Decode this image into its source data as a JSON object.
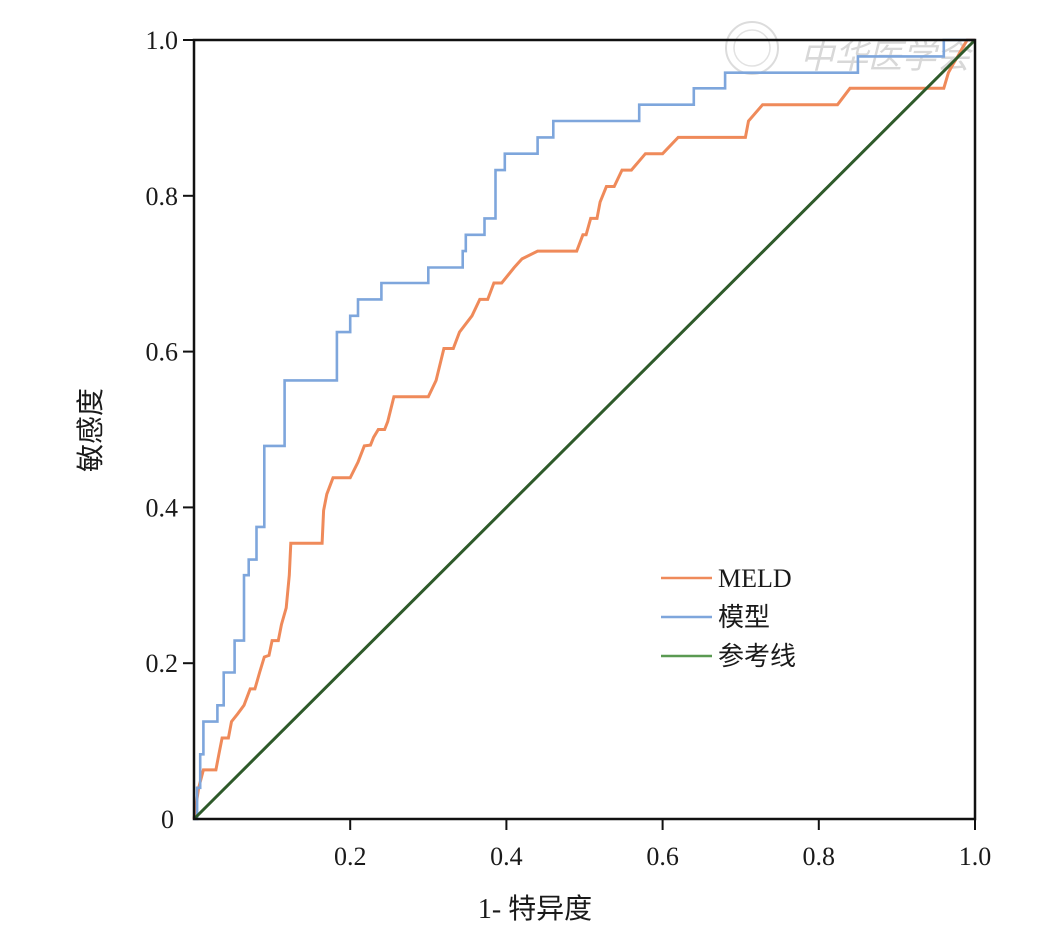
{
  "chart_data": {
    "type": "line",
    "title": "",
    "xlabel": "1- 特异度",
    "ylabel": "敏感度",
    "xlim": [
      0,
      1
    ],
    "ylim": [
      0,
      1
    ],
    "grid": false,
    "x_ticks": [
      0.2,
      0.4,
      0.6,
      0.8,
      1.0
    ],
    "x_tick_labels": [
      "0.2",
      "0.4",
      "0.6",
      "0.8",
      "1.0"
    ],
    "y_ticks": [
      0,
      0.2,
      0.4,
      0.6,
      0.8,
      1.0
    ],
    "y_tick_labels": [
      "0",
      "0.2",
      "0.4",
      "0.6",
      "0.8",
      "1.0"
    ],
    "legend_position": "center-right",
    "watermark": "中华医学会",
    "series": [
      {
        "name": "MELD",
        "color": "#ef8a5a",
        "x": [
          0,
          0.003,
          0.006,
          0.012,
          0.012,
          0.028,
          0.032,
          0.036,
          0.044,
          0.048,
          0.056,
          0.064,
          0.072,
          0.078,
          0.084,
          0.09,
          0.096,
          0.1,
          0.108,
          0.112,
          0.118,
          0.122,
          0.124,
          0.164,
          0.166,
          0.17,
          0.178,
          0.2,
          0.21,
          0.218,
          0.226,
          0.23,
          0.236,
          0.244,
          0.248,
          0.256,
          0.3,
          0.31,
          0.32,
          0.332,
          0.34,
          0.356,
          0.366,
          0.376,
          0.384,
          0.394,
          0.41,
          0.42,
          0.44,
          0.46,
          0.49,
          0.498,
          0.502,
          0.508,
          0.516,
          0.52,
          0.528,
          0.538,
          0.548,
          0.56,
          0.578,
          0.596,
          0.6,
          0.62,
          0.628,
          0.66,
          0.706,
          0.71,
          0.728,
          0.824,
          0.84,
          0.96,
          0.966,
          0.972,
          0.978,
          0.984,
          0.99,
          1
        ],
        "y": [
          0,
          0.02,
          0.04,
          0.063,
          0.063,
          0.063,
          0.084,
          0.104,
          0.104,
          0.125,
          0.135,
          0.146,
          0.167,
          0.167,
          0.188,
          0.208,
          0.21,
          0.229,
          0.229,
          0.25,
          0.271,
          0.313,
          0.354,
          0.354,
          0.396,
          0.417,
          0.438,
          0.438,
          0.458,
          0.479,
          0.48,
          0.49,
          0.5,
          0.5,
          0.51,
          0.542,
          0.542,
          0.563,
          0.604,
          0.604,
          0.625,
          0.646,
          0.667,
          0.667,
          0.688,
          0.688,
          0.708,
          0.719,
          0.729,
          0.729,
          0.729,
          0.75,
          0.75,
          0.771,
          0.771,
          0.792,
          0.812,
          0.812,
          0.833,
          0.833,
          0.854,
          0.854,
          0.854,
          0.875,
          0.875,
          0.875,
          0.875,
          0.896,
          0.917,
          0.917,
          0.938,
          0.938,
          0.958,
          0.969,
          0.979,
          0.99,
          1,
          1
        ]
      },
      {
        "name": "模型",
        "color": "#7ea6dc",
        "x": [
          0,
          0.004,
          0.004,
          0.008,
          0.008,
          0.012,
          0.012,
          0.03,
          0.03,
          0.038,
          0.038,
          0.052,
          0.052,
          0.064,
          0.064,
          0.07,
          0.07,
          0.08,
          0.08,
          0.09,
          0.09,
          0.116,
          0.116,
          0.183,
          0.183,
          0.2,
          0.2,
          0.21,
          0.21,
          0.24,
          0.24,
          0.3,
          0.3,
          0.344,
          0.344,
          0.348,
          0.348,
          0.372,
          0.372,
          0.386,
          0.386,
          0.398,
          0.398,
          0.44,
          0.44,
          0.46,
          0.46,
          0.57,
          0.57,
          0.64,
          0.64,
          0.68,
          0.68,
          0.85,
          0.85,
          0.96,
          0.96,
          1
        ],
        "y": [
          0,
          0,
          0.04,
          0.04,
          0.083,
          0.083,
          0.125,
          0.125,
          0.146,
          0.146,
          0.188,
          0.188,
          0.229,
          0.229,
          0.313,
          0.313,
          0.333,
          0.333,
          0.375,
          0.375,
          0.479,
          0.479,
          0.563,
          0.563,
          0.625,
          0.625,
          0.646,
          0.646,
          0.667,
          0.667,
          0.688,
          0.688,
          0.708,
          0.708,
          0.729,
          0.729,
          0.75,
          0.75,
          0.771,
          0.771,
          0.833,
          0.833,
          0.854,
          0.854,
          0.875,
          0.875,
          0.896,
          0.896,
          0.917,
          0.917,
          0.938,
          0.938,
          0.958,
          0.958,
          0.979,
          0.979,
          1,
          1
        ]
      },
      {
        "name": "参考线",
        "color": "#2e5a2a",
        "x": [
          0,
          1
        ],
        "y": [
          0,
          1
        ]
      }
    ],
    "legend": [
      {
        "label": "MELD",
        "color": "#ef8a5a"
      },
      {
        "label": "模型",
        "color": "#7ea6dc"
      },
      {
        "label": "参考线",
        "color": "#5a9a52"
      }
    ]
  }
}
